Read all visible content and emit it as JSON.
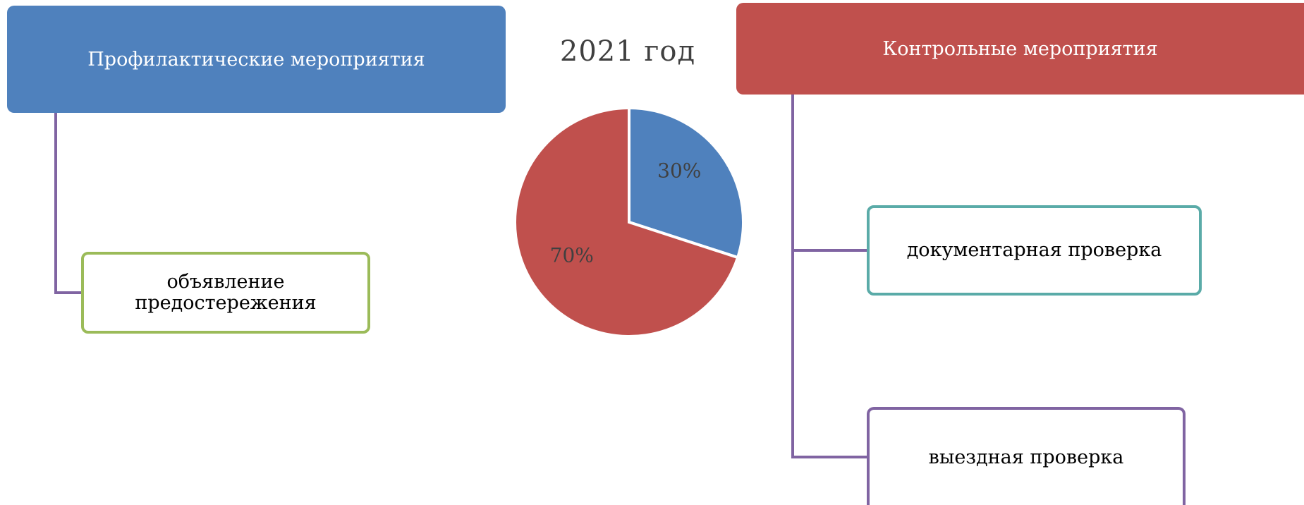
{
  "left_group": {
    "header": "Профилактические мероприятия",
    "items": [
      {
        "label": "объявление предостережения"
      }
    ]
  },
  "right_group": {
    "header": "Контрольные мероприятия",
    "items": [
      {
        "label": "документарная проверка"
      },
      {
        "label": "выездная проверка"
      }
    ]
  },
  "colors": {
    "left_header": "#4f81bd",
    "right_header": "#c0504d",
    "connector": "#8064a2",
    "left_box_border": "#9bbb59",
    "right_box1_border": "#5aaba8",
    "right_box2_border": "#8064a2"
  },
  "chart_data": {
    "type": "pie",
    "title": "2021 год",
    "slices": [
      {
        "value": 30,
        "label": "30%",
        "color": "#4f81bd"
      },
      {
        "value": 70,
        "label": "70%",
        "color": "#c0504d"
      }
    ]
  }
}
